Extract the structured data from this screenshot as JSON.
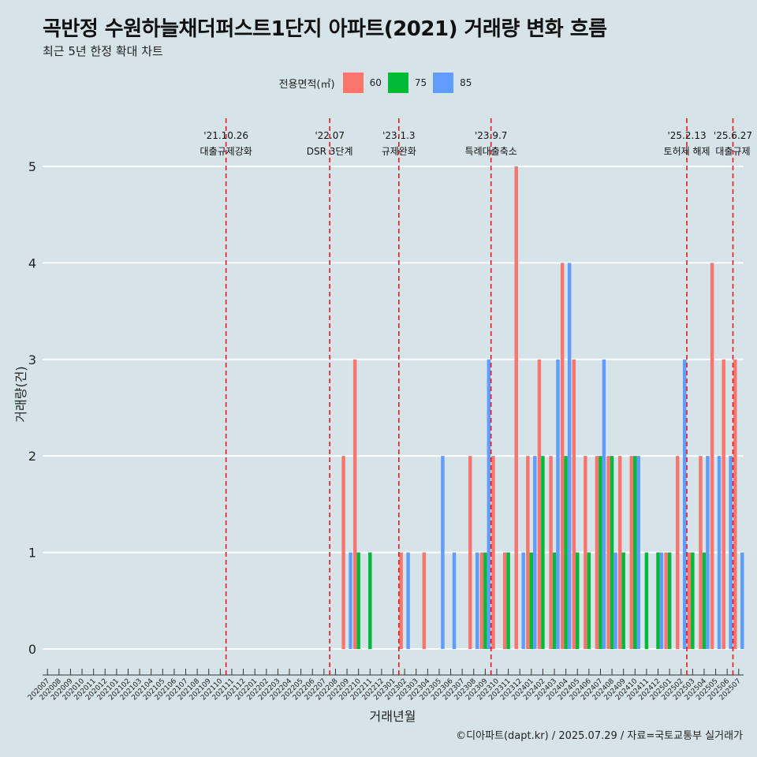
{
  "header": {
    "title": "곡반정 수원하늘채더퍼스트1단지 아파트(2021) 거래량 변화 흐름",
    "subtitle": "최근 5년 한정 확대 차트"
  },
  "legend": {
    "title": "전용면적(㎡)",
    "items": [
      {
        "label": "60",
        "color": "#f8766d"
      },
      {
        "label": "75",
        "color": "#00ba38"
      },
      {
        "label": "85",
        "color": "#619cff"
      }
    ]
  },
  "caption": "©디아파트(dapt.kr) / 2025.07.29 / 자료=국토교통부 실거래가",
  "chart_data": {
    "type": "bar",
    "xlabel": "거래년월",
    "ylabel": "거래량(건)",
    "ylim": [
      0,
      5
    ],
    "yticks": [
      0,
      1,
      2,
      3,
      4,
      5
    ],
    "grid": true,
    "legend_position": "top",
    "categories": [
      "202007",
      "202008",
      "202009",
      "202010",
      "202011",
      "202012",
      "202101",
      "202102",
      "202103",
      "202104",
      "202105",
      "202106",
      "202107",
      "202108",
      "202109",
      "202110",
      "202111",
      "202112",
      "202201",
      "202202",
      "202203",
      "202204",
      "202205",
      "202206",
      "202207",
      "202208",
      "202209",
      "202210",
      "202211",
      "202212",
      "202301",
      "202302",
      "202303",
      "202304",
      "202305",
      "202306",
      "202307",
      "202308",
      "202309",
      "202310",
      "202311",
      "202312",
      "202401",
      "202402",
      "202403",
      "202404",
      "202405",
      "202406",
      "202407",
      "202408",
      "202409",
      "202410",
      "202411",
      "202412",
      "202501",
      "202502",
      "202503",
      "202504",
      "202505",
      "202506",
      "202507"
    ],
    "series": [
      {
        "name": "60",
        "color": "#f8766d",
        "values": [
          0,
          0,
          0,
          0,
          0,
          0,
          0,
          0,
          0,
          0,
          0,
          0,
          0,
          0,
          0,
          0,
          0,
          0,
          0,
          0,
          0,
          0,
          0,
          0,
          0,
          0,
          2,
          3,
          0,
          0,
          0,
          1,
          0,
          1,
          0,
          0,
          0,
          2,
          1,
          2,
          1,
          5,
          2,
          3,
          2,
          4,
          3,
          2,
          2,
          2,
          2,
          2,
          0,
          0,
          1,
          2,
          1,
          2,
          4,
          3,
          3
        ]
      },
      {
        "name": "75",
        "color": "#00ba38",
        "values": [
          0,
          0,
          0,
          0,
          0,
          0,
          0,
          0,
          0,
          0,
          0,
          0,
          0,
          0,
          0,
          0,
          0,
          0,
          0,
          0,
          0,
          0,
          0,
          0,
          0,
          0,
          0,
          1,
          1,
          0,
          0,
          0,
          0,
          0,
          0,
          0,
          0,
          0,
          1,
          0,
          1,
          0,
          1,
          2,
          1,
          2,
          1,
          1,
          2,
          2,
          1,
          2,
          1,
          1,
          1,
          0,
          1,
          1,
          0,
          0,
          0
        ]
      },
      {
        "name": "85",
        "color": "#619cff",
        "values": [
          0,
          0,
          0,
          0,
          0,
          0,
          0,
          0,
          0,
          0,
          0,
          0,
          0,
          0,
          0,
          0,
          0,
          0,
          0,
          0,
          0,
          0,
          0,
          0,
          0,
          0,
          1,
          0,
          0,
          0,
          0,
          1,
          0,
          0,
          2,
          1,
          0,
          1,
          3,
          0,
          0,
          1,
          2,
          0,
          3,
          4,
          0,
          0,
          3,
          1,
          0,
          2,
          0,
          1,
          0,
          3,
          0,
          2,
          2,
          2,
          1
        ]
      }
    ],
    "annotations": [
      {
        "x": "202110",
        "date": "'21.10.26",
        "label": "대출규제강화"
      },
      {
        "x": "202207",
        "date": "'22.07",
        "label": "DSR 3단계"
      },
      {
        "x": "202301",
        "date": "'23.1.3",
        "label": "규제완화"
      },
      {
        "x": "202309",
        "date": "'23.9.7",
        "label": "특례대출축소"
      },
      {
        "x": "202502",
        "date": "'25.2.13",
        "label": "토허제 해제"
      },
      {
        "x": "202506",
        "date": "'25.6.27",
        "label": "대출규제"
      }
    ]
  }
}
